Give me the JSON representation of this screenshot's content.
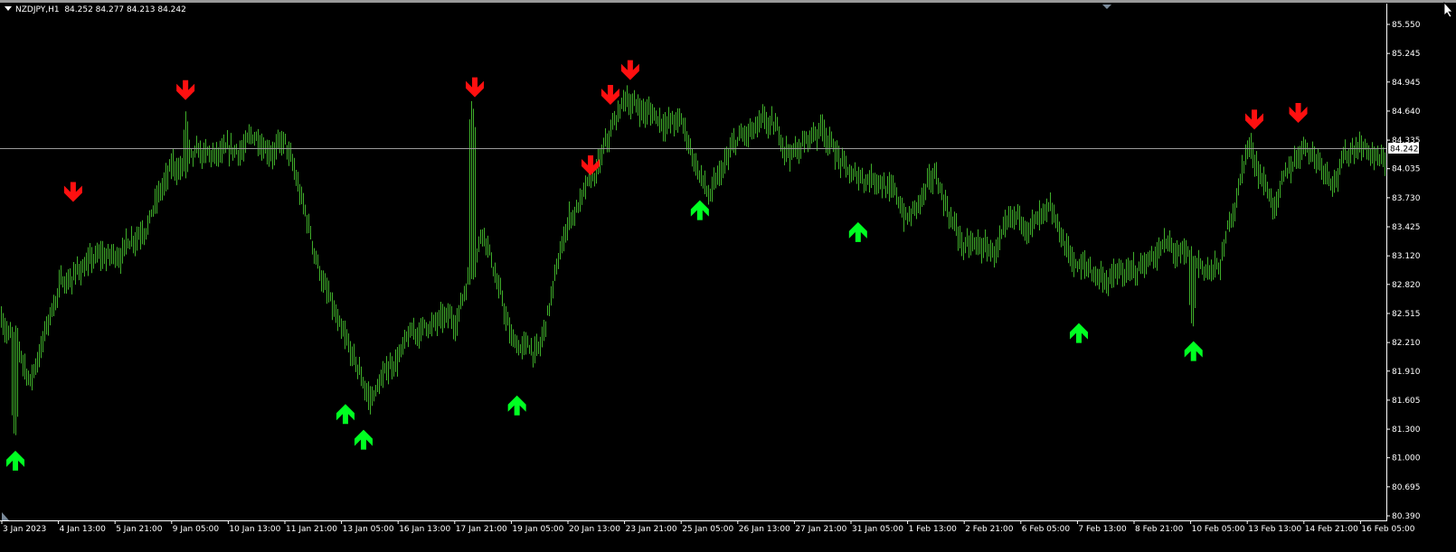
{
  "header": {
    "symbol": "NZDJPY,H1",
    "ohlc": "84.252 84.277 84.213 84.242"
  },
  "colors": {
    "background": "#000000",
    "bars": "#3fae2a",
    "sell_arrow": "#ff1010",
    "buy_arrow": "#00ff22",
    "bid_line": "#9a9a9a",
    "axis_text": "#ffffff"
  },
  "chart_data": {
    "type": "bar",
    "style": "ohlc-bars",
    "timeframe": "H1",
    "ylim": [
      80.39,
      85.55
    ],
    "yticks": [
      "85.550",
      "85.245",
      "84.945",
      "84.640",
      "84.335",
      "84.035",
      "83.730",
      "83.425",
      "83.120",
      "82.820",
      "82.515",
      "82.210",
      "81.910",
      "81.605",
      "81.300",
      "81.000",
      "80.695",
      "80.390"
    ],
    "current_price": "84.242",
    "categories": [
      "3 Jan 2023",
      "4 Jan 13:00",
      "5 Jan 21:00",
      "9 Jan 05:00",
      "10 Jan 13:00",
      "11 Jan 21:00",
      "13 Jan 05:00",
      "16 Jan 13:00",
      "17 Jan 21:00",
      "19 Jan 05:00",
      "20 Jan 13:00",
      "23 Jan 21:00",
      "25 Jan 05:00",
      "26 Jan 13:00",
      "27 Jan 21:00",
      "31 Jan 05:00",
      "1 Feb 13:00",
      "2 Feb 21:00",
      "6 Feb 05:00",
      "7 Feb 13:00",
      "8 Feb 21:00",
      "10 Feb 05:00",
      "13 Feb 13:00",
      "14 Feb 21:00",
      "16 Feb 05:00"
    ],
    "price_path": [
      82.5,
      81.8,
      82.8,
      83.05,
      83.1,
      83.5,
      84.0,
      84.1,
      84.1,
      84.35,
      84.29,
      83.2,
      82.2,
      81.6,
      82.1,
      82.4,
      82.4,
      83.5,
      82.2,
      82.1,
      83.5,
      83.95,
      84.76,
      84.6,
      84.5,
      83.7,
      84.3,
      84.43,
      84.2,
      84.5,
      83.9,
      84.0,
      83.5,
      83.9,
      83.2,
      83.15,
      83.45,
      83.45,
      83.0,
      82.9,
      82.9,
      83.25,
      83.0,
      82.95,
      84.3,
      83.65,
      84.33,
      84.0,
      84.35,
      84.0
    ],
    "extremes": [
      {
        "pos": 0.45,
        "price": 81.15
      },
      {
        "pos": 16.6,
        "price": 84.8
      },
      {
        "pos": 42.05,
        "price": 82.3
      },
      {
        "pos": 6.5,
        "price": 84.68
      },
      {
        "pos": 22.3,
        "price": 84.92
      }
    ],
    "sell_signals": [
      {
        "pos": 2.52,
        "price": 83.79
      },
      {
        "pos": 6.49,
        "price": 84.86
      },
      {
        "pos": 16.71,
        "price": 84.89
      },
      {
        "pos": 20.8,
        "price": 84.07
      },
      {
        "pos": 21.5,
        "price": 84.81
      },
      {
        "pos": 22.2,
        "price": 85.07
      },
      {
        "pos": 44.25,
        "price": 84.55
      },
      {
        "pos": 45.8,
        "price": 84.62
      }
    ],
    "buy_signals": [
      {
        "pos": 0.48,
        "price": 80.97
      },
      {
        "pos": 12.14,
        "price": 81.46
      },
      {
        "pos": 12.78,
        "price": 81.19
      },
      {
        "pos": 18.2,
        "price": 81.55
      },
      {
        "pos": 24.66,
        "price": 83.6
      },
      {
        "pos": 30.25,
        "price": 83.37
      },
      {
        "pos": 38.05,
        "price": 82.31
      },
      {
        "pos": 42.1,
        "price": 82.12
      }
    ],
    "grid": false
  }
}
